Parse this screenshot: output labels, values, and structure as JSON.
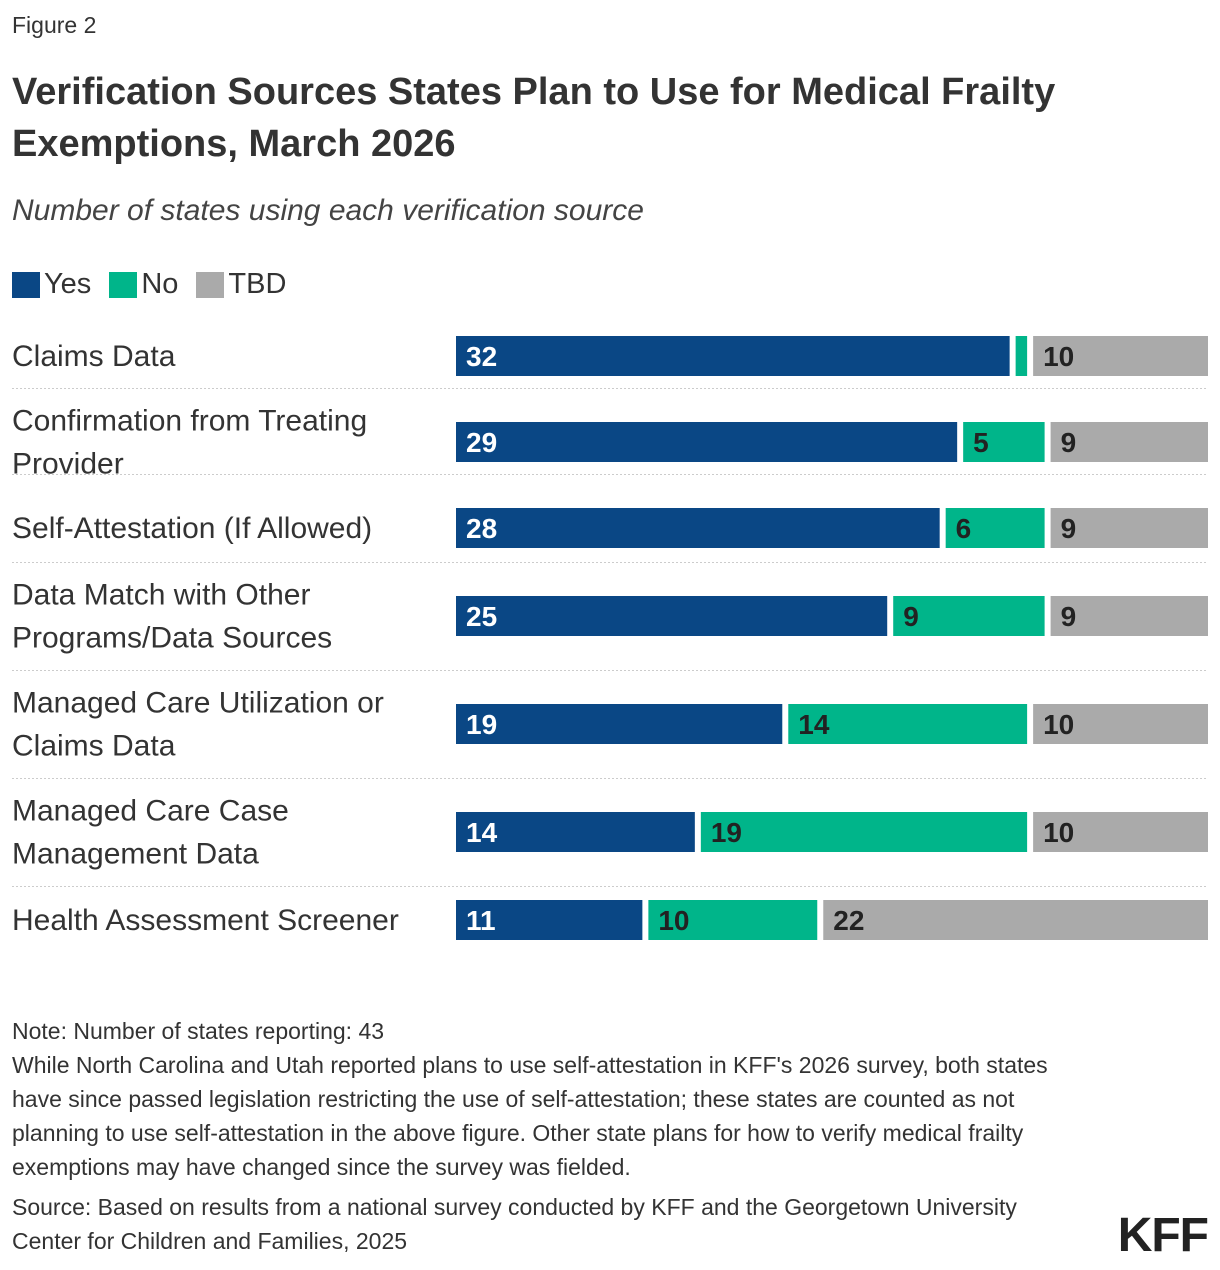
{
  "figure_label": "Figure 2",
  "title": "Verification Sources States Plan to Use for Medical Frailty Exemptions, March 2026",
  "subtitle": "Number of states using each verification source",
  "legend": [
    {
      "label": "Yes",
      "color": "#0a4785"
    },
    {
      "label": "No",
      "color": "#00b58a"
    },
    {
      "label": "TBD",
      "color": "#aaaaaa"
    }
  ],
  "chart_data": {
    "type": "bar",
    "orientation": "horizontal",
    "stacked": true,
    "categories": [
      "Claims Data",
      "Confirmation from Treating Provider",
      "Self-Attestation (If Allowed)",
      "Data Match with Other Programs/Data Sources",
      "Managed Care Utilization or Claims Data",
      "Managed Care Case Management Data",
      "Health Assessment Screener"
    ],
    "series": [
      {
        "name": "Yes",
        "color": "#0a4785",
        "values": [
          32,
          29,
          28,
          25,
          19,
          14,
          11
        ]
      },
      {
        "name": "No",
        "color": "#00b58a",
        "values": [
          1,
          5,
          6,
          9,
          14,
          19,
          10
        ]
      },
      {
        "name": "TBD",
        "color": "#aaaaaa",
        "values": [
          10,
          9,
          9,
          9,
          10,
          10,
          22
        ]
      }
    ],
    "data_labels": [
      [
        "32",
        "",
        "10"
      ],
      [
        "29",
        "5",
        "9"
      ],
      [
        "28",
        "6",
        "9"
      ],
      [
        "25",
        "9",
        "9"
      ],
      [
        "19",
        "14",
        "10"
      ],
      [
        "14",
        "19",
        "10"
      ],
      [
        "11",
        "10",
        "22"
      ]
    ],
    "xlim": [
      0,
      43
    ],
    "legend_position": "top-left"
  },
  "note": "Note: Number of states reporting: 43",
  "note_detail": "While North Carolina and Utah reported plans to use self-attestation in KFF's 2026 survey, both states have since passed legislation restricting the use of self-attestation; these states are counted as not planning to use self-attestation in the above figure. Other state plans for how to verify medical frailty exemptions may have changed since the survey was fielded.",
  "source": "Source: Based on results from a national survey conducted by KFF and the Georgetown University Center for Children and Families, 2025",
  "logo_text": "KFF"
}
